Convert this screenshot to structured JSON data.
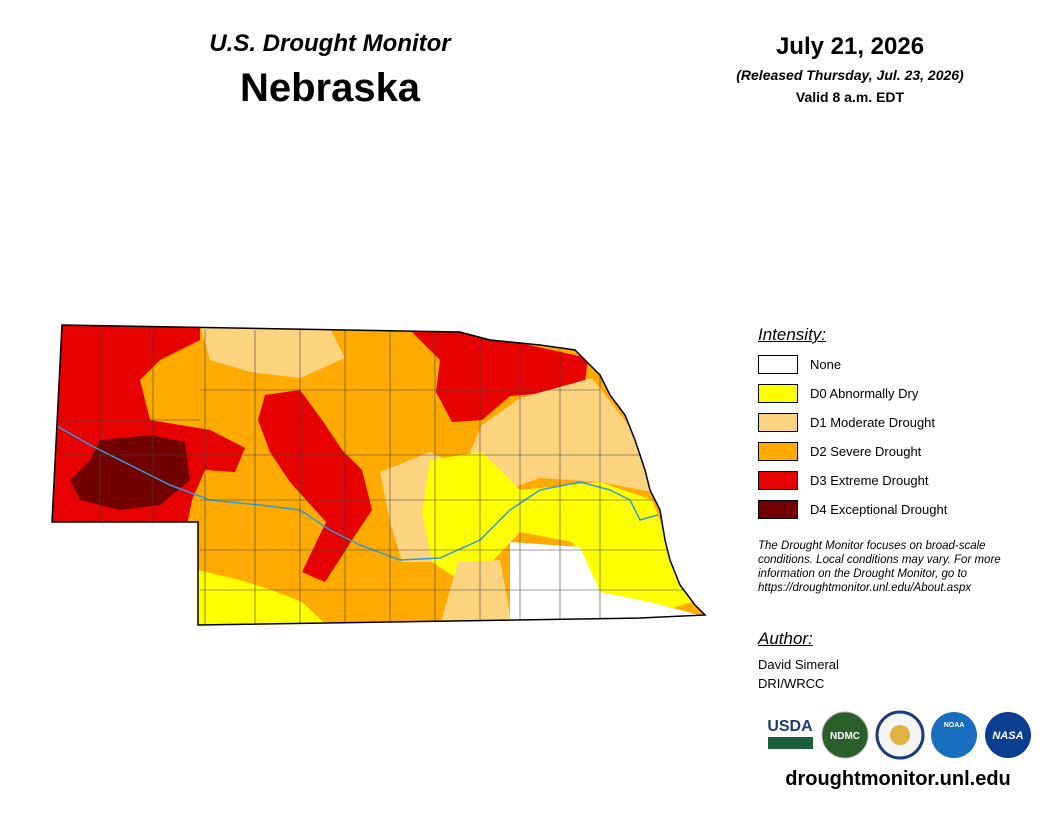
{
  "header": {
    "title": "U.S. Drought Monitor",
    "state": "Nebraska",
    "date": "July 21, 2026",
    "released": "(Released Thursday, Jul. 23, 2026)",
    "valid": "Valid 8 a.m. EDT"
  },
  "legend": {
    "title": "Intensity:",
    "items": [
      {
        "label": "None",
        "color": "#ffffff"
      },
      {
        "label": "D0 Abnormally Dry",
        "color": "#ffff00"
      },
      {
        "label": "D1 Moderate Drought",
        "color": "#fcd37f"
      },
      {
        "label": "D2 Severe Drought",
        "color": "#ffaa00"
      },
      {
        "label": "D3 Extreme Drought",
        "color": "#e60000"
      },
      {
        "label": "D4 Exceptional Drought",
        "color": "#730000"
      }
    ]
  },
  "note": "The Drought Monitor focuses on broad-scale conditions. Local conditions may vary. For more information on the Drought Monitor, go to https://droughtmonitor.unl.edu/About.aspx",
  "author": {
    "title": "Author:",
    "lines": [
      "David Simeral",
      "DRI/WRCC"
    ]
  },
  "logos": [
    "USDA",
    "NDMC",
    "NOAA",
    "NASA"
  ],
  "footer": "droughtmonitor.unl.edu"
}
